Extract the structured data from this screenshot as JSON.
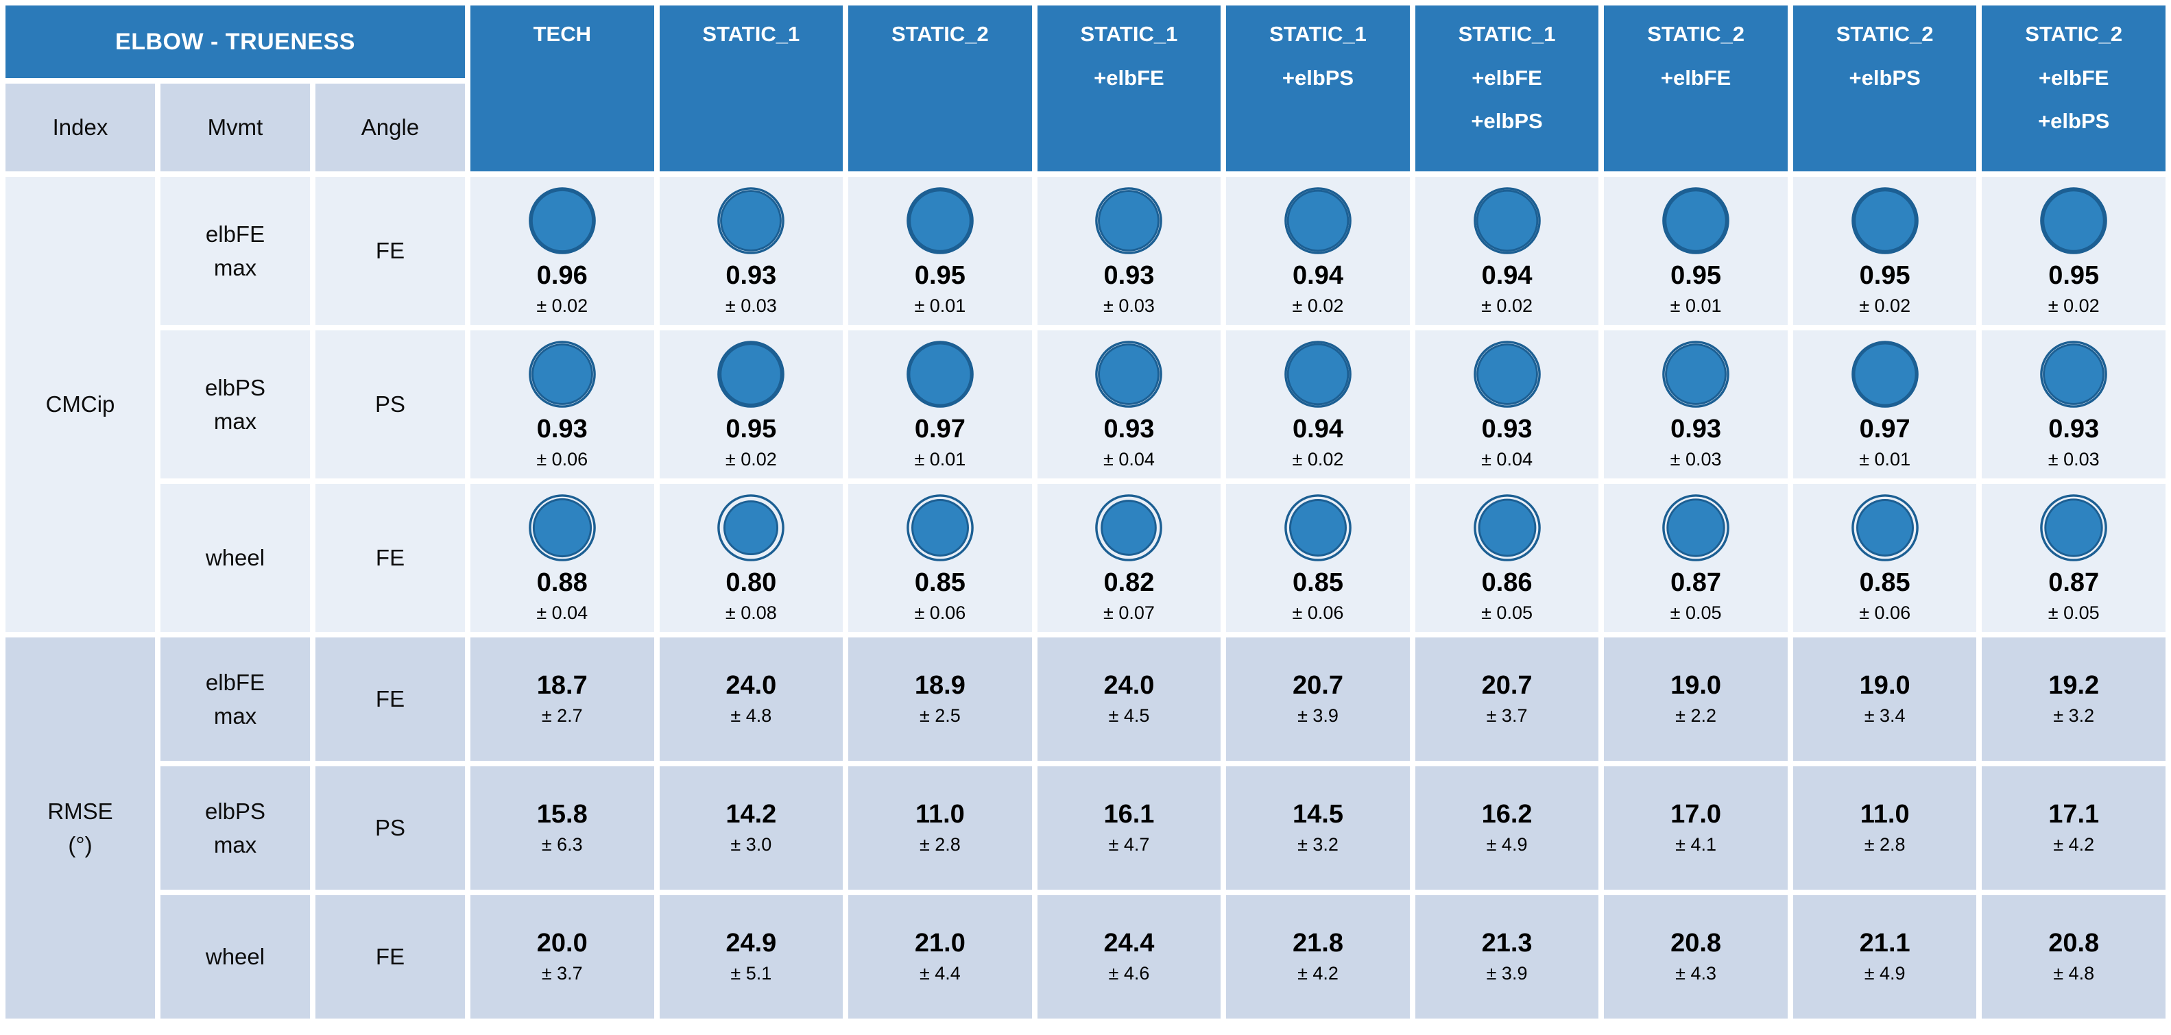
{
  "colors": {
    "header_blue": "#2b7ab9",
    "light_cell": "#e9eff7",
    "dark_cell": "#ccd7e8",
    "circle_fill": "#2e83c0",
    "circle_stroke": "#1c5f93",
    "header_text": "#ffffff",
    "body_text": "#000000"
  },
  "chart_data": {
    "type": "table",
    "title": "ELBOW - TRUENESS",
    "column_groups": [
      "Index",
      "Mvmt",
      "Angle"
    ],
    "columns": [
      "TECH",
      "STATIC_1",
      "STATIC_2",
      "STATIC_1\n+elbFE",
      "STATIC_1\n+elbPS",
      "STATIC_1\n+elbFE\n+elbPS",
      "STATIC_2\n+elbFE",
      "STATIC_2\n+elbPS",
      "STATIC_2\n+elbFE\n+elbPS"
    ],
    "sections": [
      {
        "index": "CMCip",
        "display": "CMCip",
        "glyph": "circle",
        "rows": [
          {
            "mvmt": "elbFE\nmax",
            "angle": "FE",
            "values": [
              "0.96",
              "0.93",
              "0.95",
              "0.93",
              "0.94",
              "0.94",
              "0.95",
              "0.95",
              "0.95"
            ],
            "sd": [
              "0.02",
              "0.03",
              "0.01",
              "0.03",
              "0.02",
              "0.02",
              "0.01",
              "0.02",
              "0.02"
            ]
          },
          {
            "mvmt": "elbPS\nmax",
            "angle": "PS",
            "values": [
              "0.93",
              "0.95",
              "0.97",
              "0.93",
              "0.94",
              "0.93",
              "0.93",
              "0.97",
              "0.93"
            ],
            "sd": [
              "0.06",
              "0.02",
              "0.01",
              "0.04",
              "0.02",
              "0.04",
              "0.03",
              "0.01",
              "0.03"
            ]
          },
          {
            "mvmt": "wheel",
            "angle": "FE",
            "values": [
              "0.88",
              "0.80",
              "0.85",
              "0.82",
              "0.85",
              "0.86",
              "0.87",
              "0.85",
              "0.87"
            ],
            "sd": [
              "0.04",
              "0.08",
              "0.06",
              "0.07",
              "0.06",
              "0.05",
              "0.05",
              "0.06",
              "0.05"
            ]
          }
        ]
      },
      {
        "index": "RMSE (°)",
        "display": "RMSE\n(°)",
        "glyph": "none",
        "rows": [
          {
            "mvmt": "elbFE\nmax",
            "angle": "FE",
            "values": [
              "18.7",
              "24.0",
              "18.9",
              "24.0",
              "20.7",
              "20.7",
              "19.0",
              "19.0",
              "19.2"
            ],
            "sd": [
              "2.7",
              "4.8",
              "2.5",
              "4.5",
              "3.9",
              "3.7",
              "2.2",
              "3.4",
              "3.2"
            ]
          },
          {
            "mvmt": "elbPS\nmax",
            "angle": "PS",
            "values": [
              "15.8",
              "14.2",
              "11.0",
              "16.1",
              "14.5",
              "16.2",
              "17.0",
              "11.0",
              "17.1"
            ],
            "sd": [
              "6.3",
              "3.0",
              "2.8",
              "4.7",
              "3.2",
              "4.9",
              "4.1",
              "2.8",
              "4.2"
            ]
          },
          {
            "mvmt": "wheel",
            "angle": "FE",
            "values": [
              "20.0",
              "24.9",
              "21.0",
              "24.4",
              "21.8",
              "21.3",
              "20.8",
              "21.1",
              "20.8"
            ],
            "sd": [
              "3.7",
              "5.1",
              "4.4",
              "4.6",
              "4.2",
              "3.9",
              "4.3",
              "4.9",
              "4.8"
            ]
          }
        ]
      }
    ],
    "plus_minus_prefix": "± "
  }
}
